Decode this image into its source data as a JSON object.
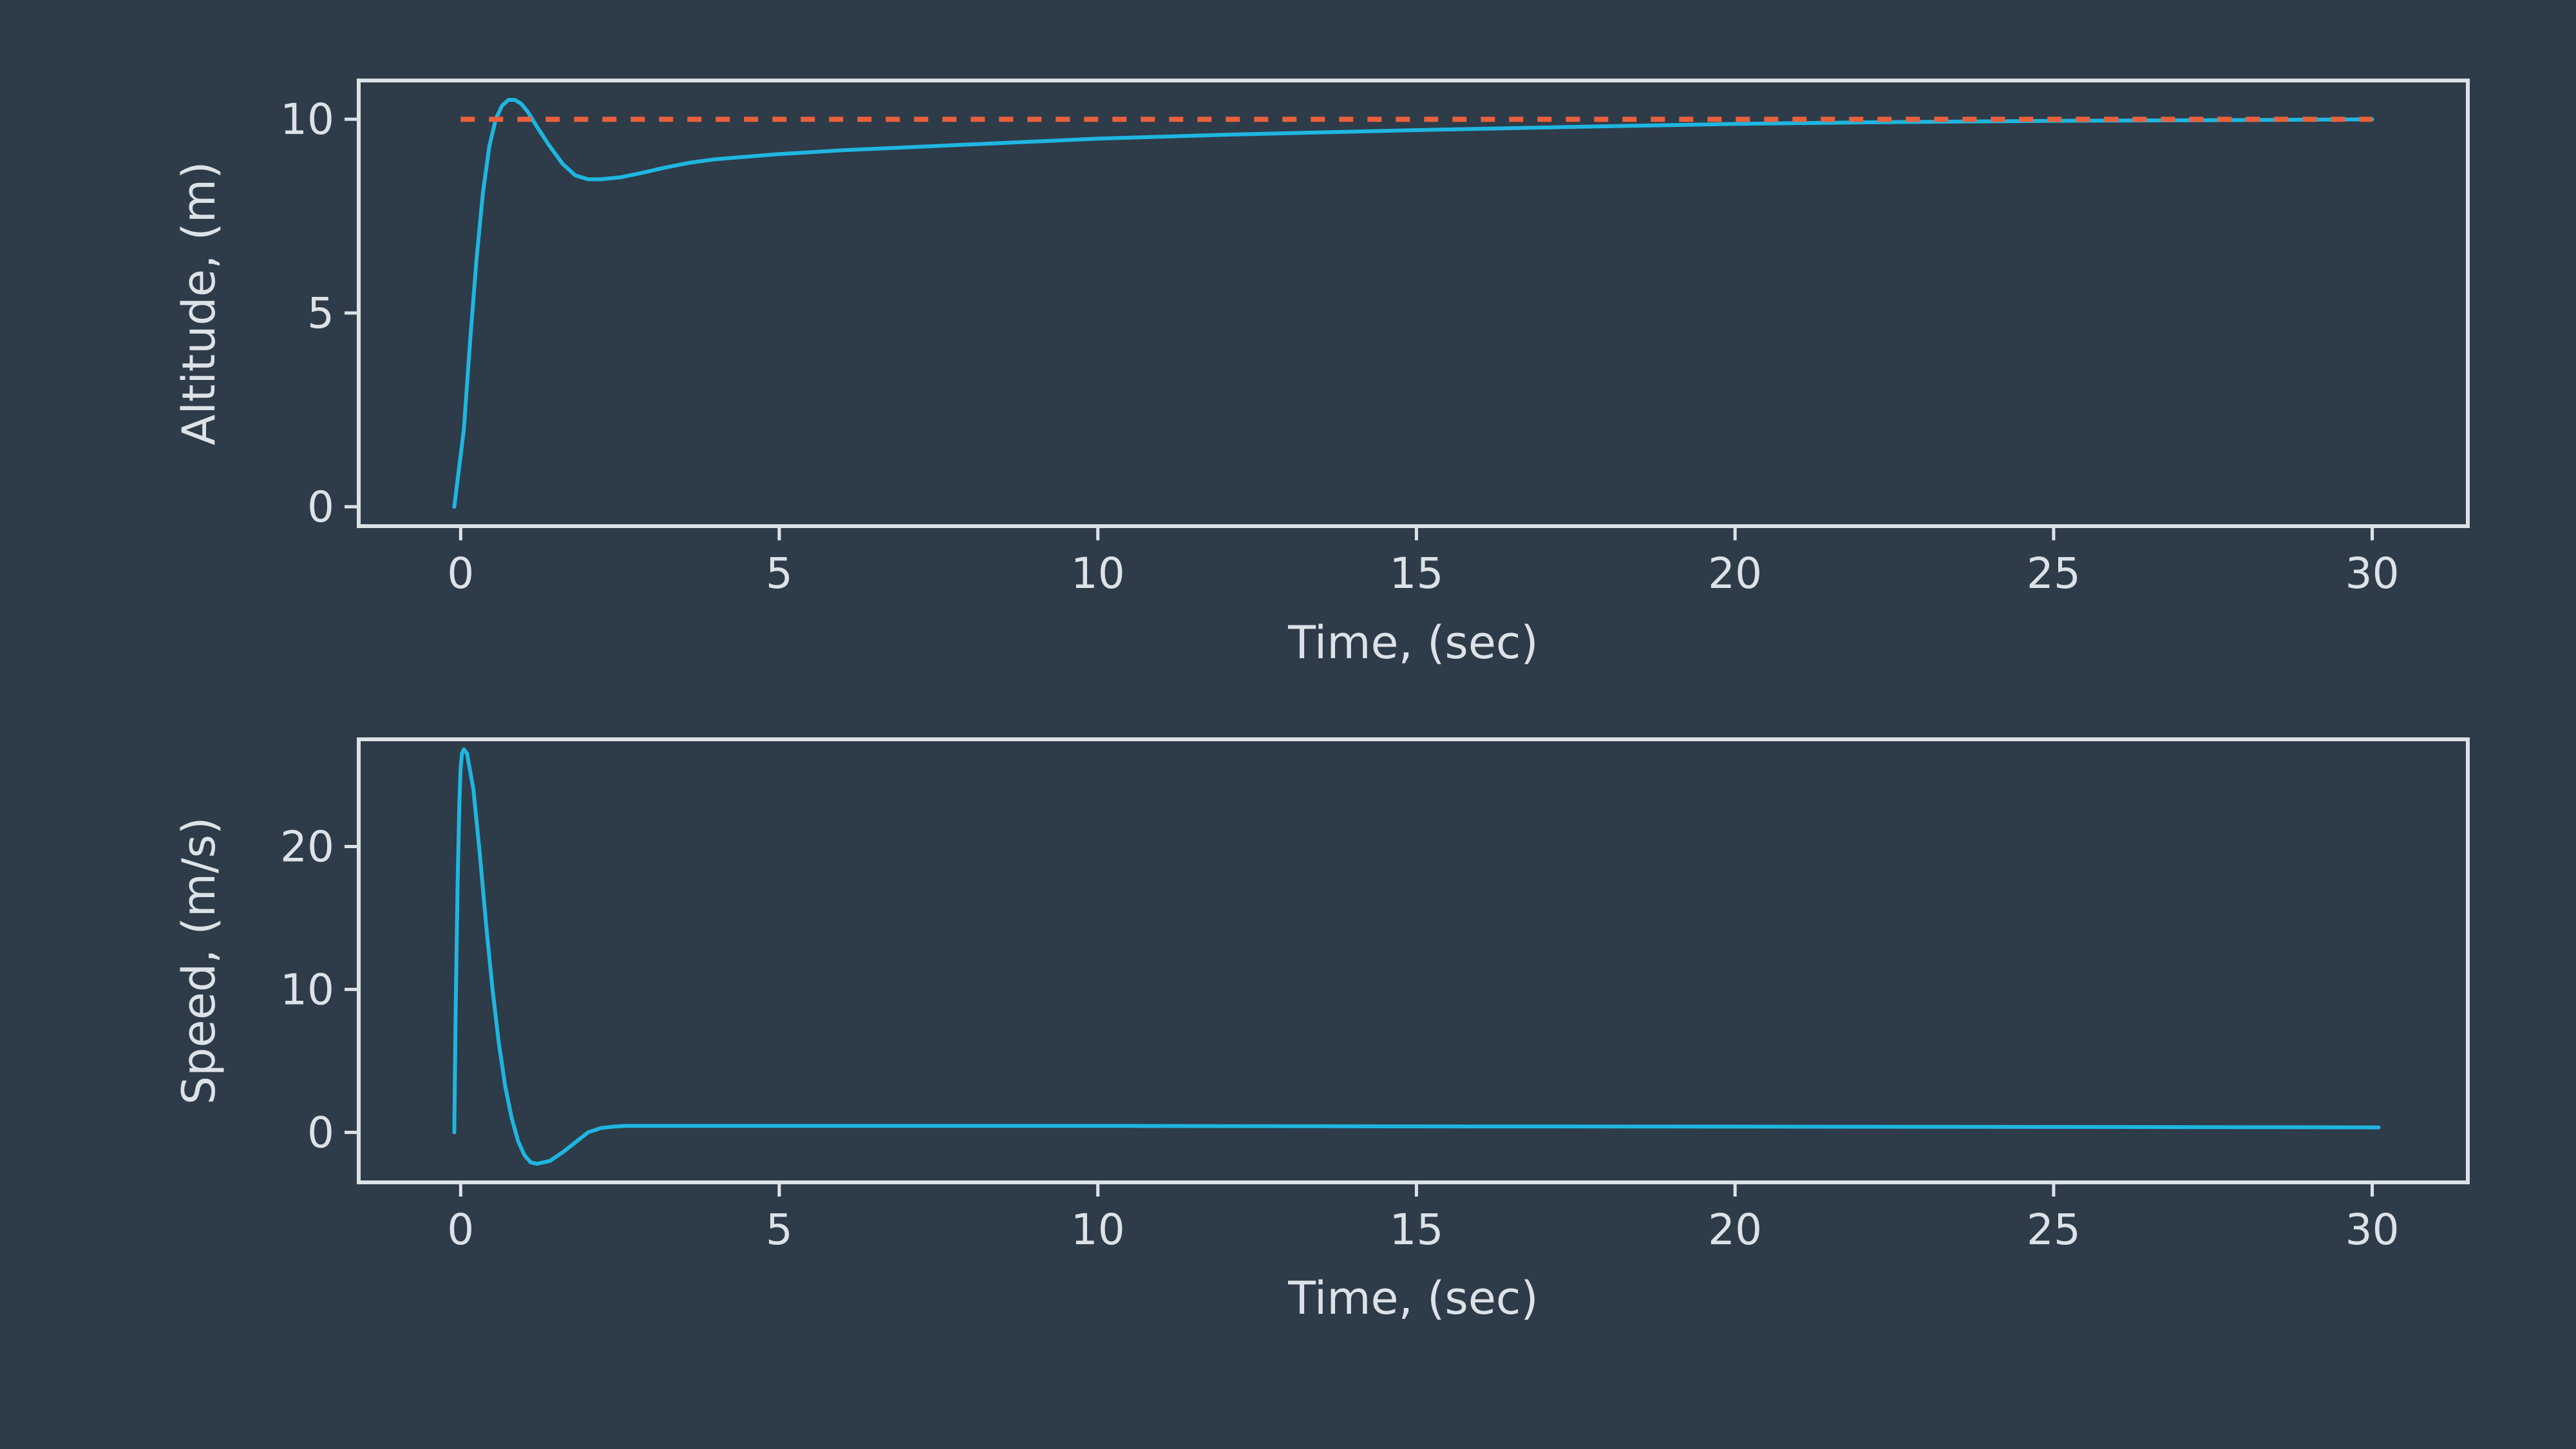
{
  "chart_data": [
    {
      "type": "line",
      "xlabel": "Time, (sec)",
      "ylabel": "Altitude, (m)",
      "xlim": [
        -1.6,
        31.5
      ],
      "ylim": [
        -0.5,
        11.0
      ],
      "xticks": [
        0,
        5,
        10,
        15,
        20,
        25,
        30
      ],
      "yticks": [
        0,
        5,
        10
      ],
      "grid": false,
      "series": [
        {
          "color": "#1eb6e0",
          "style": "solid",
          "x": [
            -0.1,
            0.05,
            0.15,
            0.25,
            0.35,
            0.45,
            0.55,
            0.65,
            0.75,
            0.85,
            0.95,
            1.05,
            1.2,
            1.4,
            1.6,
            1.8,
            2.0,
            2.2,
            2.5,
            2.8,
            3.2,
            3.6,
            4.0,
            5,
            6,
            8,
            10,
            12,
            15,
            18,
            20,
            22,
            25,
            28,
            30
          ],
          "y": [
            0.0,
            2.0,
            4.3,
            6.4,
            8.1,
            9.3,
            10.0,
            10.35,
            10.5,
            10.5,
            10.4,
            10.2,
            9.8,
            9.3,
            8.85,
            8.55,
            8.45,
            8.45,
            8.5,
            8.6,
            8.75,
            8.88,
            8.97,
            9.1,
            9.2,
            9.35,
            9.5,
            9.6,
            9.72,
            9.82,
            9.88,
            9.92,
            9.96,
            9.98,
            10.0
          ]
        },
        {
          "color": "#e8603c",
          "style": "dashed",
          "x": [
            0,
            30
          ],
          "y": [
            10,
            10
          ]
        }
      ]
    },
    {
      "type": "line",
      "xlabel": "Time, (sec)",
      "ylabel": "Speed, (m/s)",
      "xlim": [
        -1.6,
        31.5
      ],
      "ylim": [
        -3.5,
        27.5
      ],
      "xticks": [
        0,
        5,
        10,
        15,
        20,
        25,
        30
      ],
      "yticks": [
        0,
        10,
        20
      ],
      "grid": false,
      "series": [
        {
          "color": "#1eb6e0",
          "style": "solid",
          "x": [
            -0.1,
            -0.08,
            -0.05,
            -0.02,
            0.0,
            0.02,
            0.05,
            0.1,
            0.2,
            0.3,
            0.4,
            0.5,
            0.6,
            0.7,
            0.8,
            0.9,
            1.0,
            1.1,
            1.2,
            1.4,
            1.6,
            1.8,
            2.0,
            2.2,
            2.4,
            2.6,
            3.0,
            5,
            10,
            15,
            20,
            25,
            30.1
          ],
          "y": [
            0.0,
            8.0,
            17.0,
            23.0,
            25.5,
            26.5,
            26.8,
            26.5,
            24.0,
            19.5,
            14.5,
            10.0,
            6.2,
            3.2,
            1.0,
            -0.6,
            -1.6,
            -2.1,
            -2.2,
            -2.0,
            -1.4,
            -0.7,
            0.0,
            0.3,
            0.4,
            0.45,
            0.45,
            0.45,
            0.45,
            0.42,
            0.4,
            0.38,
            0.35
          ]
        }
      ]
    }
  ]
}
